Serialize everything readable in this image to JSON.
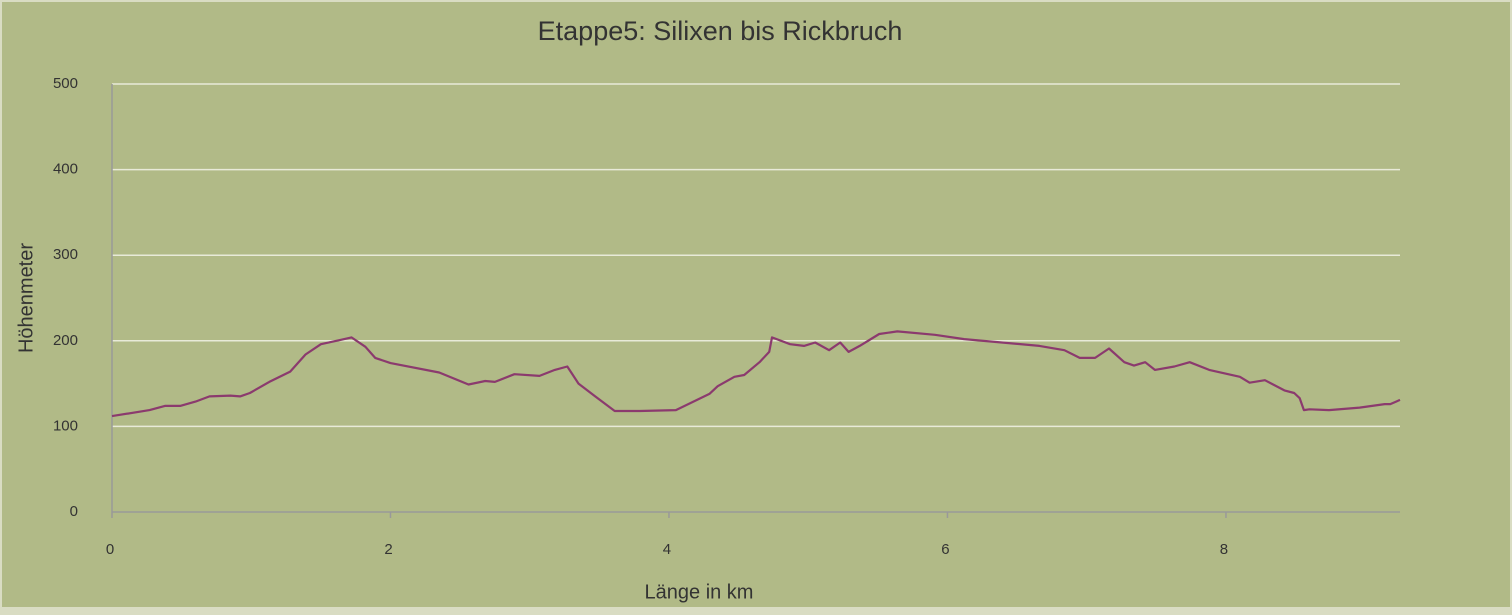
{
  "chart_data": {
    "type": "line",
    "title": "Etappe5: Silixen bis Rickbruch",
    "x_label": "Länge in km",
    "y_label": "Höhenmeter",
    "xlim": [
      0,
      9.25
    ],
    "xticks": [
      0,
      2,
      4,
      6,
      8
    ],
    "ylim": [
      0,
      500
    ],
    "yticks": [
      0,
      100,
      200,
      300,
      400,
      500
    ],
    "grid": true,
    "series": [
      {
        "color": "#8b3a6e",
        "x": [
          0,
          0.27,
          0.38,
          0.49,
          0.6,
          0.7,
          0.85,
          0.92,
          0.99,
          1.13,
          1.28,
          1.39,
          1.5,
          1.64,
          1.72,
          1.82,
          1.89,
          2.0,
          2.35,
          2.56,
          2.68,
          2.75,
          2.89,
          3.07,
          3.18,
          3.27,
          3.35,
          3.47,
          3.61,
          3.79,
          4.05,
          4.29,
          4.35,
          4.47,
          4.54,
          4.65,
          4.72,
          4.74,
          4.87,
          4.97,
          5.05,
          5.15,
          5.23,
          5.29,
          5.37,
          5.48,
          5.51,
          5.64,
          5.91,
          6.12,
          6.66,
          6.84,
          6.95,
          7.06,
          7.16,
          7.27,
          7.34,
          7.42,
          7.49,
          7.63,
          7.74,
          7.88,
          8.1,
          8.17,
          8.28,
          8.42,
          8.49,
          8.53,
          8.56,
          8.6,
          8.74,
          8.96,
          9.14,
          9.18,
          9.25
        ],
        "values": [
          112,
          119,
          124,
          124,
          129,
          135,
          136,
          135,
          139,
          152,
          164,
          184,
          196,
          201,
          204,
          193,
          180,
          174,
          163,
          149,
          153,
          152,
          161,
          159,
          166,
          170,
          150,
          135,
          118,
          118,
          119,
          138,
          147,
          158,
          160,
          175,
          187,
          204,
          196,
          194,
          198,
          189,
          198,
          187,
          194,
          205,
          208,
          211,
          207,
          202,
          194,
          189,
          180,
          180,
          191,
          175,
          171,
          175,
          166,
          170,
          175,
          166,
          158,
          151,
          154,
          142,
          139,
          133,
          119,
          120,
          119,
          122,
          126,
          126,
          131
        ]
      }
    ]
  }
}
